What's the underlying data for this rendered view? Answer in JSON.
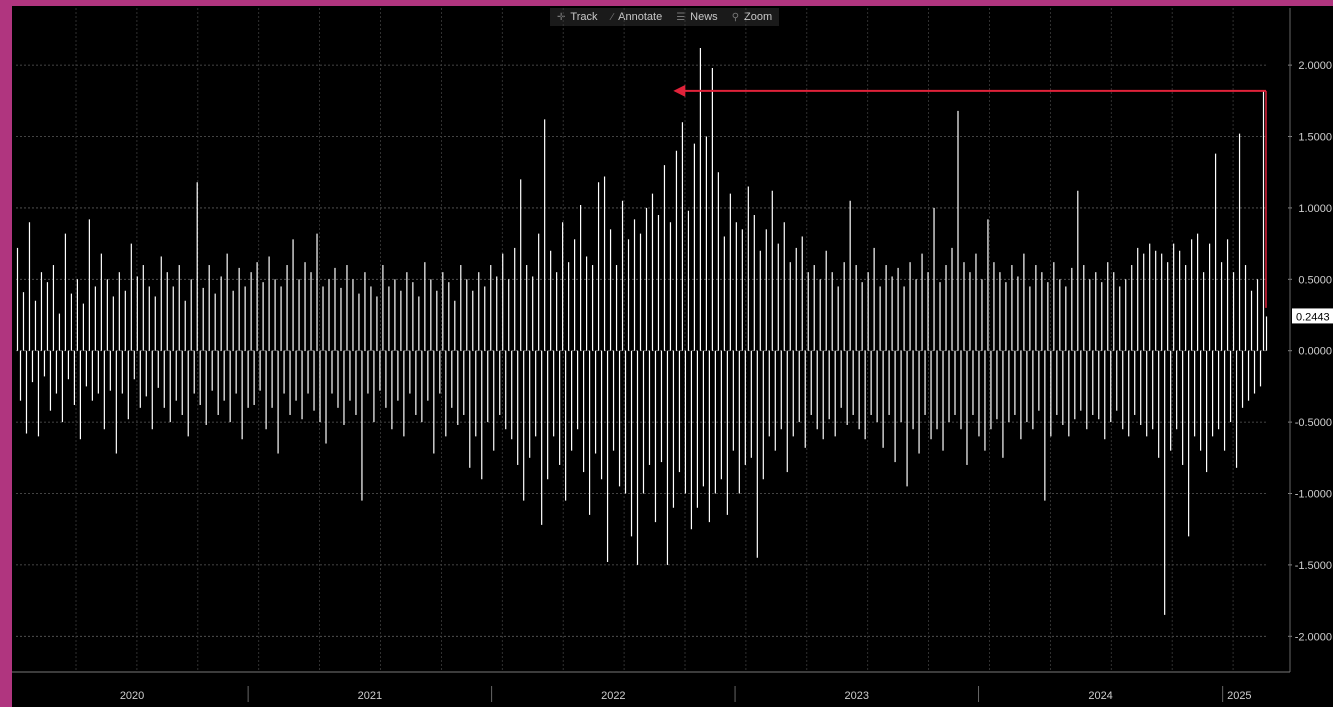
{
  "toolbar": {
    "items": [
      {
        "label": "Track",
        "icon": "crosshair-icon"
      },
      {
        "label": "Annotate",
        "icon": "pencil-icon"
      },
      {
        "label": "News",
        "icon": "news-icon"
      },
      {
        "label": "Zoom",
        "icon": "magnifier-icon"
      }
    ]
  },
  "colors": {
    "frame": "#b0357f",
    "background": "#000000",
    "bars": "#ffffff",
    "annotation_arrow": "#e0223a",
    "grid": "#5a5a5a"
  },
  "chart_data": {
    "type": "bar",
    "title": "",
    "xlabel": "",
    "ylabel": "",
    "ylim": [
      -2.25,
      2.4
    ],
    "y_ticks": [
      "2.0000",
      "1.5000",
      "1.0000",
      "0.5000",
      "0.0000",
      "-0.5000",
      "-1.0000",
      "-1.5000",
      "-2.0000"
    ],
    "x_tick_labels": [
      "2020",
      "2021",
      "2022",
      "2023",
      "2024",
      "2025"
    ],
    "x_range": [
      "2020-01-01",
      "2025-02-20"
    ],
    "grid": true,
    "last_value_label": "0.2443",
    "series": [
      {
        "values": [
          0.72,
          -0.35,
          0.41,
          -0.58,
          0.9,
          -0.22,
          0.35,
          -0.6,
          0.55,
          -0.18,
          0.48,
          -0.42,
          0.6,
          -0.3,
          0.26,
          -0.5,
          0.82,
          -0.2,
          0.4,
          -0.38,
          0.5,
          -0.62,
          0.33,
          -0.25,
          0.92,
          -0.35,
          0.45,
          -0.3,
          0.68,
          -0.55,
          0.5,
          -0.28,
          0.38,
          -0.72,
          0.55,
          -0.3,
          0.42,
          -0.48,
          0.75,
          -0.2,
          0.52,
          -0.4,
          0.6,
          -0.32,
          0.45,
          -0.55,
          0.38,
          -0.26,
          0.66,
          -0.4,
          0.55,
          -0.5,
          0.45,
          -0.35,
          0.6,
          -0.45,
          0.35,
          -0.6,
          0.5,
          -0.3,
          1.18,
          -0.38,
          0.44,
          -0.52,
          0.6,
          -0.28,
          0.4,
          -0.45,
          0.52,
          -0.35,
          0.68,
          -0.5,
          0.42,
          -0.3,
          0.58,
          -0.62,
          0.45,
          -0.4,
          0.55,
          -0.38,
          0.62,
          -0.28,
          0.48,
          -0.55,
          0.66,
          -0.4,
          0.5,
          -0.72,
          0.45,
          -0.3,
          0.6,
          -0.45,
          0.78,
          -0.35,
          0.5,
          -0.48,
          0.62,
          -0.3,
          0.55,
          -0.42,
          0.82,
          -0.5,
          0.45,
          -0.65,
          0.5,
          -0.3,
          0.58,
          -0.4,
          0.44,
          -0.52,
          0.6,
          -0.35,
          0.5,
          -0.45,
          0.4,
          -1.05,
          0.55,
          -0.3,
          0.45,
          -0.5,
          0.38,
          -0.28,
          0.6,
          -0.4,
          0.45,
          -0.55,
          0.5,
          -0.35,
          0.42,
          -0.6,
          0.55,
          -0.3,
          0.48,
          -0.45,
          0.38,
          -0.5,
          0.62,
          -0.35,
          0.5,
          -0.72,
          0.42,
          -0.3,
          0.55,
          -0.6,
          0.48,
          -0.4,
          0.35,
          -0.52,
          0.6,
          -0.45,
          0.5,
          -0.82,
          0.42,
          -0.6,
          0.55,
          -0.9,
          0.45,
          -0.5,
          0.6,
          -0.7,
          0.52,
          -0.45,
          0.68,
          -0.55,
          0.5,
          -0.62,
          0.72,
          -0.8,
          1.2,
          -1.05,
          0.6,
          -0.75,
          0.52,
          -0.6,
          0.82,
          -1.22,
          1.62,
          -0.9,
          0.7,
          -0.6,
          0.55,
          -0.8,
          0.9,
          -1.05,
          0.62,
          -0.7,
          0.78,
          -0.55,
          1.02,
          -0.85,
          0.66,
          -1.15,
          0.6,
          -0.72,
          1.18,
          -0.9,
          1.22,
          -1.48,
          0.85,
          -0.7,
          0.6,
          -0.95,
          1.05,
          -1.0,
          0.78,
          -1.3,
          0.92,
          -1.5,
          0.82,
          -1.0,
          1.0,
          -0.8,
          1.1,
          -1.2,
          0.95,
          -0.78,
          1.3,
          -1.5,
          0.9,
          -1.1,
          1.4,
          -0.85,
          1.6,
          -1.0,
          0.98,
          -1.25,
          1.45,
          -1.1,
          2.12,
          -0.95,
          1.5,
          -1.2,
          1.98,
          -1.0,
          1.25,
          -0.9,
          0.8,
          -1.15,
          1.1,
          -0.7,
          0.9,
          -1.0,
          0.85,
          -0.8,
          1.15,
          -0.75,
          0.95,
          -1.45,
          0.7,
          -0.9,
          0.85,
          -0.6,
          1.12,
          -0.7,
          0.75,
          -0.55,
          0.9,
          -0.85,
          0.62,
          -0.6,
          0.72,
          -0.5,
          0.8,
          -0.68,
          0.55,
          -0.45,
          0.6,
          -0.55,
          0.5,
          -0.62,
          0.7,
          -0.48,
          0.55,
          -0.6,
          0.45,
          -0.4,
          0.62,
          -0.52,
          1.05,
          -0.45,
          0.6,
          -0.55,
          0.48,
          -0.62,
          0.55,
          -0.45,
          0.72,
          -0.5,
          0.45,
          -0.68,
          0.6,
          -0.45,
          0.52,
          -0.78,
          0.58,
          -0.5,
          0.45,
          -0.95,
          0.62,
          -0.55,
          0.5,
          -0.72,
          0.68,
          -0.45,
          0.55,
          -0.62,
          1.0,
          -0.55,
          0.48,
          -0.7,
          0.6,
          -0.5,
          0.72,
          -0.45,
          1.68,
          -0.55,
          0.62,
          -0.8,
          0.55,
          -0.45,
          0.68,
          -0.6,
          0.5,
          -0.7,
          0.92,
          -0.55,
          0.62,
          -0.48,
          0.55,
          -0.75,
          0.48,
          -0.5,
          0.6,
          -0.45,
          0.52,
          -0.62,
          0.68,
          -0.5,
          0.45,
          -0.55,
          0.6,
          -0.42,
          0.55,
          -1.05,
          0.48,
          -0.6,
          0.62,
          -0.45,
          0.5,
          -0.52,
          0.45,
          -0.6,
          0.58,
          -0.48,
          1.12,
          -0.42,
          0.6,
          -0.55,
          0.5,
          -0.45,
          0.55,
          -0.48,
          0.48,
          -0.62,
          0.62,
          -0.5,
          0.55,
          -0.42,
          0.45,
          -0.55,
          0.5,
          -0.6,
          0.6,
          -0.45,
          0.72,
          -0.52,
          0.68,
          -0.6,
          0.75,
          -0.55,
          0.7,
          -0.75,
          0.68,
          -1.85,
          0.62,
          -0.7,
          0.75,
          -0.55,
          0.7,
          -0.8,
          0.6,
          -1.3,
          0.78,
          -0.6,
          0.82,
          -0.7,
          0.55,
          -0.85,
          0.75,
          -0.6,
          1.38,
          -0.55,
          0.62,
          -0.7,
          0.78,
          -0.5,
          0.55,
          -0.82,
          1.52,
          -0.4,
          0.6,
          -0.35,
          0.42,
          -0.3,
          0.5,
          -0.25,
          1.82,
          0.24
        ]
      }
    ],
    "annotation": {
      "type": "arrow",
      "from_value": 1.82,
      "to_value": 1.82,
      "direction": "left"
    }
  }
}
